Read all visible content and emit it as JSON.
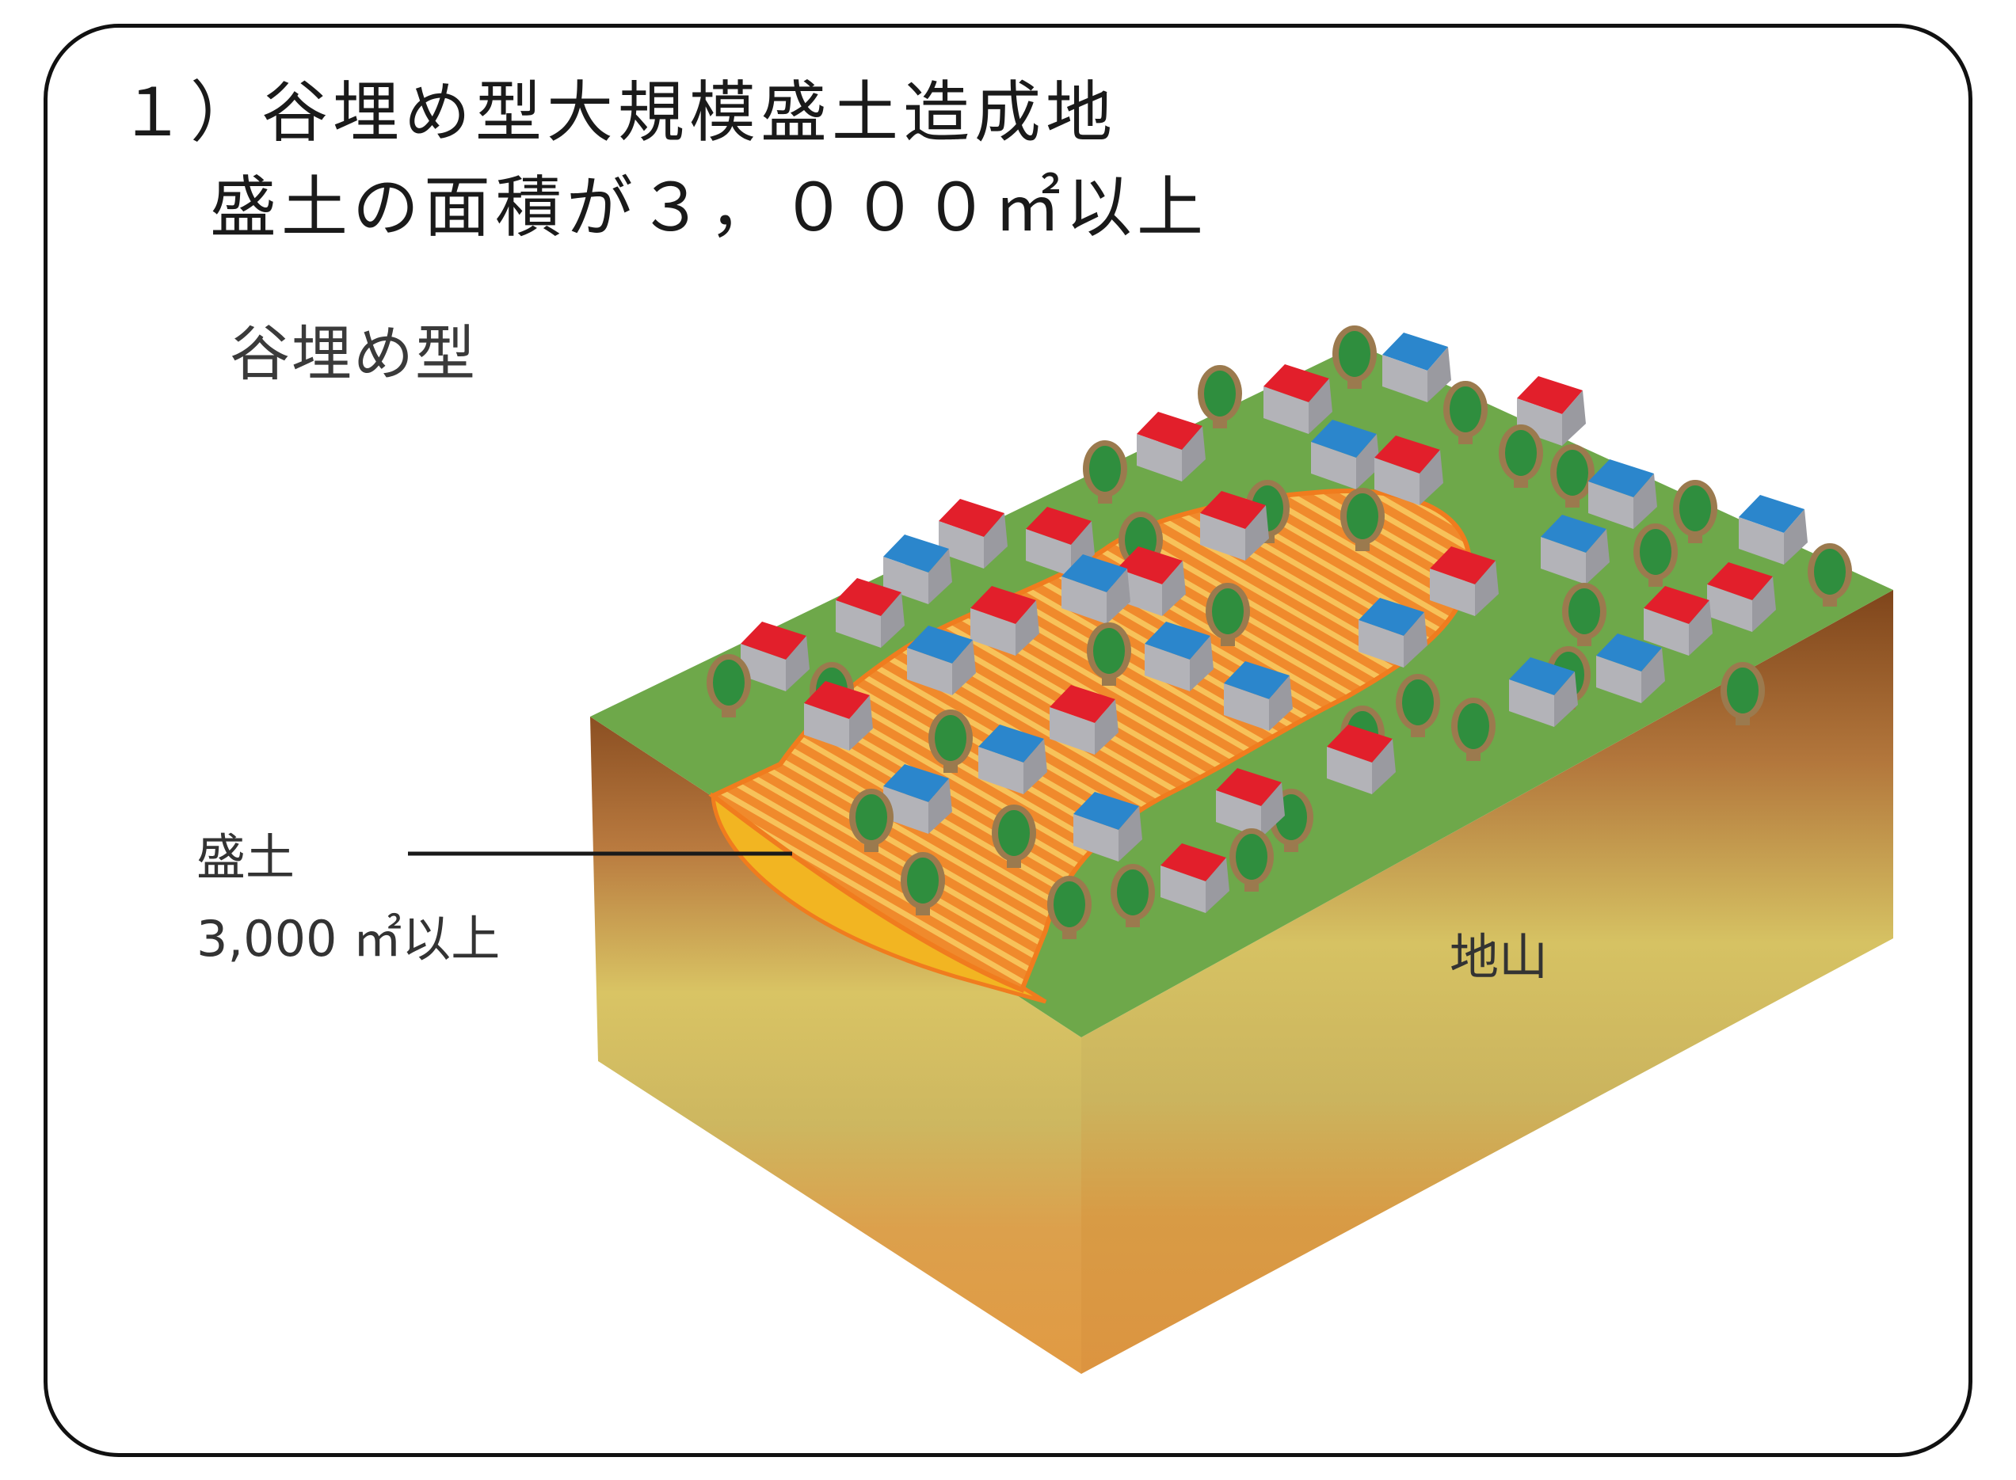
{
  "title": {
    "line1": "１）谷埋め型大規模盛土造成地",
    "line2": "盛土の面積が３，０００㎡以上"
  },
  "subtitle": "谷埋め型",
  "labels": {
    "fill_line1": "盛土",
    "fill_line2": "3,000 ㎡以上",
    "ground": "地山"
  },
  "colors": {
    "border": "#111111",
    "grass": "#6ea84a",
    "soil_dark": "#8b4f22",
    "soil_mid": "#d7bc62",
    "soil_light": "#e2a24a",
    "fill_orange": "#f07c1e",
    "fill_yellow": "#f2b522",
    "roof_red": "#e21f2b",
    "roof_blue": "#2b86cc",
    "wall_gray": "#a9a9ad",
    "tree_green": "#2f8e3e",
    "tree_trunk": "#9b7a4e"
  },
  "icons": [
    "house-red-icon",
    "house-blue-icon",
    "tree-icon"
  ]
}
